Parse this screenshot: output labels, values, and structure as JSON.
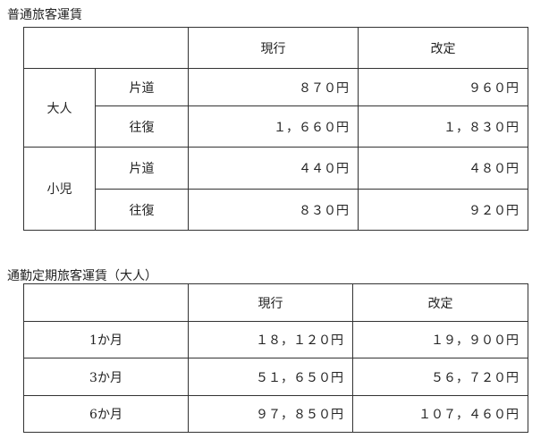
{
  "ordinary": {
    "title": "普通旅客運賃",
    "headers": [
      "",
      "現行",
      "改定"
    ],
    "groups": [
      {
        "label": "大人",
        "rows": [
          {
            "type": "片道",
            "current": "８７０円",
            "revised": "９６０円"
          },
          {
            "type": "往復",
            "current": "１，６６０円",
            "revised": "１，８３０円"
          }
        ]
      },
      {
        "label": "小児",
        "rows": [
          {
            "type": "片道",
            "current": "４４０円",
            "revised": "４８０円"
          },
          {
            "type": "往復",
            "current": "８３０円",
            "revised": "９２０円"
          }
        ]
      }
    ]
  },
  "commuter": {
    "title": "通勤定期旅客運賃（大人）",
    "headers": [
      "",
      "現行",
      "改定"
    ],
    "rows": [
      {
        "period": "1か月",
        "current": "１８，１２０円",
        "revised": "１９，９００円"
      },
      {
        "period": "3か月",
        "current": "５１，６５０円",
        "revised": "５６，７２０円"
      },
      {
        "period": "6か月",
        "current": "９７，８５０円",
        "revised": "１０７，４６０円"
      }
    ]
  }
}
